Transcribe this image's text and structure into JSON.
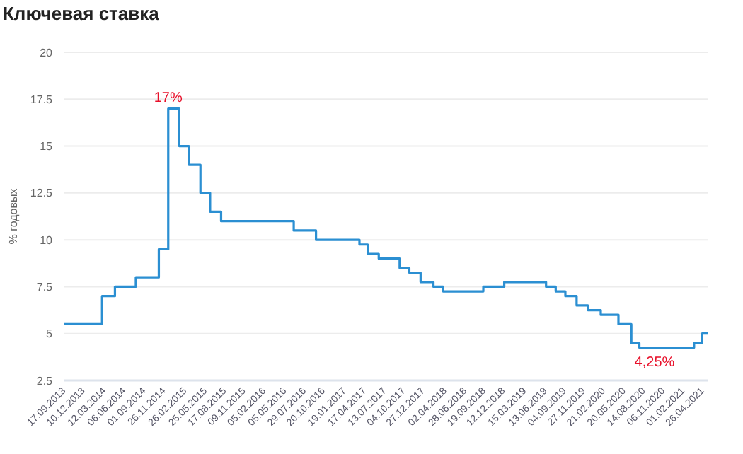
{
  "chart_data": {
    "type": "step",
    "title": "Ключевая ставка",
    "ylabel": "% годовых",
    "x": [
      "2013-09-17",
      "2014-03-03",
      "2014-04-28",
      "2014-07-28",
      "2014-11-05",
      "2014-12-16",
      "2015-02-02",
      "2015-03-16",
      "2015-05-05",
      "2015-06-16",
      "2015-08-03",
      "2016-06-14",
      "2016-09-19",
      "2017-03-27",
      "2017-05-02",
      "2017-06-19",
      "2017-09-18",
      "2017-10-30",
      "2017-12-18",
      "2018-02-12",
      "2018-03-26",
      "2018-09-17",
      "2018-12-17",
      "2019-06-17",
      "2019-07-29",
      "2019-09-09",
      "2019-10-28",
      "2019-12-16",
      "2020-02-10",
      "2020-04-27",
      "2020-06-22",
      "2020-07-27",
      "2021-03-22",
      "2021-04-26",
      "2021-05-20"
    ],
    "series": [
      {
        "color": "#2b8fd2",
        "values": [
          5.5,
          7,
          7.5,
          8,
          9.5,
          17,
          15,
          14,
          12.5,
          11.5,
          11,
          10.5,
          10,
          9.75,
          9.25,
          9,
          8.5,
          8.25,
          7.75,
          7.5,
          7.25,
          7.5,
          7.75,
          7.5,
          7.25,
          7,
          6.5,
          6.25,
          6,
          5.5,
          4.5,
          4.25,
          4.5,
          5,
          5
        ]
      }
    ],
    "xlim": [
      "2013-09-17",
      "2021-05-20"
    ],
    "xticks": [
      {
        "value": "2013-09-17",
        "label": "17.09.2013"
      },
      {
        "value": "2013-12-10",
        "label": "10.12.2013"
      },
      {
        "value": "2014-03-12",
        "label": "12.03.2014"
      },
      {
        "value": "2014-06-06",
        "label": "06.06.2014"
      },
      {
        "value": "2014-09-01",
        "label": "01.09.2014"
      },
      {
        "value": "2014-11-26",
        "label": "26.11.2014"
      },
      {
        "value": "2015-02-26",
        "label": "26.02.2015"
      },
      {
        "value": "2015-05-25",
        "label": "25.05.2015"
      },
      {
        "value": "2015-08-17",
        "label": "17.08.2015"
      },
      {
        "value": "2015-11-09",
        "label": "09.11.2015"
      },
      {
        "value": "2016-02-05",
        "label": "05.02.2016"
      },
      {
        "value": "2016-05-05",
        "label": "05.05.2016"
      },
      {
        "value": "2016-07-29",
        "label": "29.07.2016"
      },
      {
        "value": "2016-10-20",
        "label": "20.10.2016"
      },
      {
        "value": "2017-01-19",
        "label": "19.01.2017"
      },
      {
        "value": "2017-04-17",
        "label": "17.04.2017"
      },
      {
        "value": "2017-07-13",
        "label": "13.07.2017"
      },
      {
        "value": "2017-10-04",
        "label": "04.10.2017"
      },
      {
        "value": "2017-12-27",
        "label": "27.12.2017"
      },
      {
        "value": "2018-04-02",
        "label": "02.04.2018"
      },
      {
        "value": "2018-06-28",
        "label": "28.06.2018"
      },
      {
        "value": "2018-09-19",
        "label": "19.09.2018"
      },
      {
        "value": "2018-12-12",
        "label": "12.12.2018"
      },
      {
        "value": "2019-03-15",
        "label": "15.03.2019"
      },
      {
        "value": "2019-06-13",
        "label": "13.06.2019"
      },
      {
        "value": "2019-09-04",
        "label": "04.09.2019"
      },
      {
        "value": "2019-11-27",
        "label": "27.11.2019"
      },
      {
        "value": "2020-02-21",
        "label": "21.02.2020"
      },
      {
        "value": "2020-05-20",
        "label": "20.05.2020"
      },
      {
        "value": "2020-08-14",
        "label": "14.08.2020"
      },
      {
        "value": "2020-11-06",
        "label": "06.11.2020"
      },
      {
        "value": "2021-02-01",
        "label": "01.02.2021"
      },
      {
        "value": "2021-04-26",
        "label": "26.04.2021"
      }
    ],
    "ylim": [
      2.5,
      20
    ],
    "yticks": [
      2.5,
      5,
      7.5,
      10,
      12.5,
      15,
      17.5,
      20
    ],
    "grid": "y",
    "annotations": [
      {
        "text": "17%",
        "x": "2014-12-16",
        "y": 17
      },
      {
        "text": "4,25%",
        "x": "2020-10-01",
        "y": 4.25
      }
    ]
  }
}
